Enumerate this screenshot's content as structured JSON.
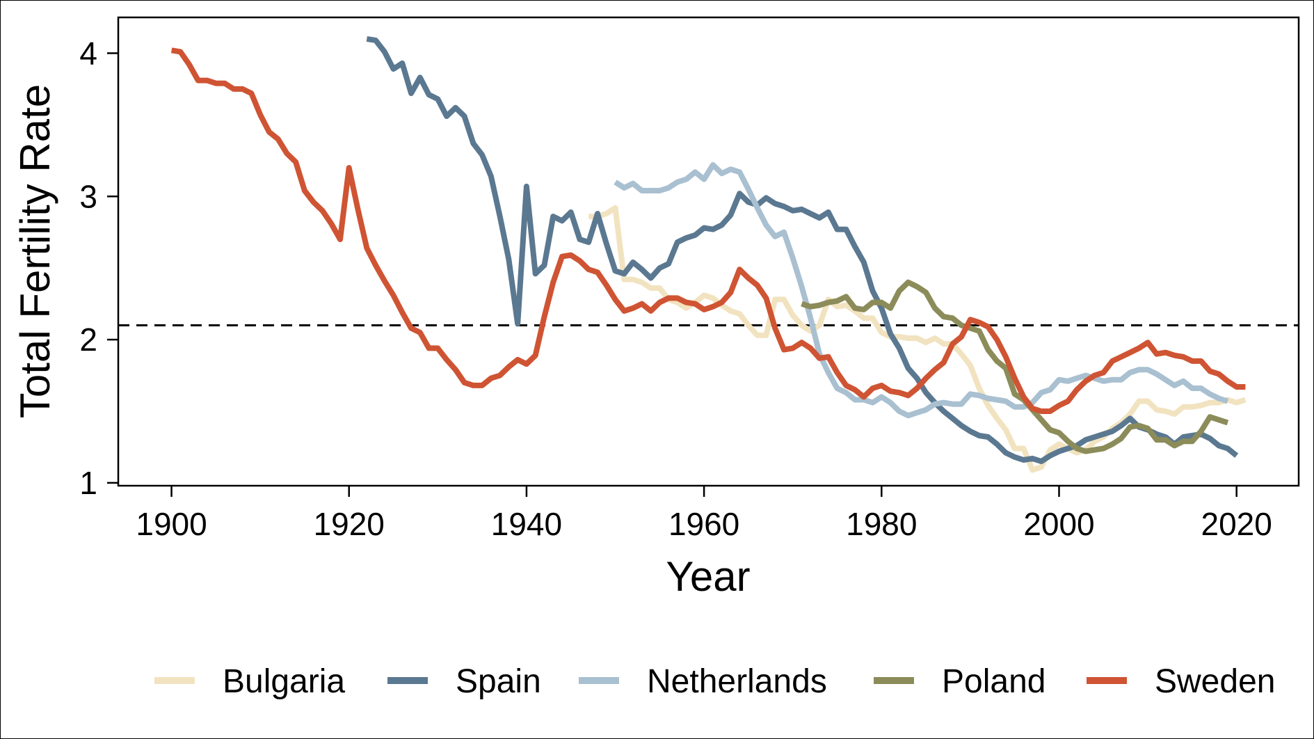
{
  "chart_data": {
    "type": "line",
    "xlabel": "Year",
    "ylabel": "Total Fertility Rate",
    "xlim": [
      1894,
      2027
    ],
    "ylim": [
      0.98,
      4.25
    ],
    "xticks": [
      "1900",
      "1920",
      "1940",
      "1960",
      "1980",
      "2000",
      "2020"
    ],
    "yticks": [
      "1",
      "2",
      "3",
      "4"
    ],
    "reference_line": {
      "y": 2.1,
      "style": "dashed"
    },
    "legend_position": "bottom",
    "series": [
      {
        "name": "Bulgaria",
        "color": "#f2e3c0",
        "x": [
          1947,
          1948,
          1949,
          1950,
          1951,
          1952,
          1953,
          1954,
          1955,
          1956,
          1957,
          1958,
          1959,
          1960,
          1961,
          1962,
          1963,
          1964,
          1965,
          1966,
          1967,
          1968,
          1969,
          1970,
          1971,
          1972,
          1973,
          1974,
          1975,
          1976,
          1977,
          1978,
          1979,
          1980,
          1981,
          1982,
          1983,
          1984,
          1985,
          1986,
          1987,
          1988,
          1989,
          1990,
          1991,
          1992,
          1993,
          1994,
          1995,
          1996,
          1997,
          1998,
          1999,
          2000,
          2001,
          2002,
          2003,
          2004,
          2005,
          2006,
          2007,
          2008,
          2009,
          2010,
          2011,
          2012,
          2013,
          2014,
          2015,
          2016,
          2017,
          2018,
          2019,
          2020,
          2021
        ],
        "y": [
          2.86,
          2.86,
          2.88,
          2.92,
          2.42,
          2.42,
          2.4,
          2.36,
          2.36,
          2.28,
          2.26,
          2.22,
          2.26,
          2.31,
          2.29,
          2.24,
          2.2,
          2.18,
          2.1,
          2.03,
          2.03,
          2.28,
          2.28,
          2.17,
          2.1,
          2.06,
          2.1,
          2.28,
          2.23,
          2.24,
          2.2,
          2.15,
          2.15,
          2.05,
          2.02,
          2.02,
          2.01,
          2.01,
          1.98,
          2.01,
          1.97,
          1.97,
          1.9,
          1.82,
          1.66,
          1.54,
          1.45,
          1.37,
          1.24,
          1.24,
          1.09,
          1.11,
          1.23,
          1.27,
          1.24,
          1.21,
          1.23,
          1.29,
          1.32,
          1.38,
          1.42,
          1.48,
          1.57,
          1.57,
          1.51,
          1.5,
          1.48,
          1.53,
          1.53,
          1.54,
          1.56,
          1.56,
          1.58,
          1.56,
          1.58
        ]
      },
      {
        "name": "Spain",
        "color": "#5b7891",
        "x": [
          1922,
          1923,
          1924,
          1925,
          1926,
          1927,
          1928,
          1929,
          1930,
          1931,
          1932,
          1933,
          1934,
          1935,
          1936,
          1937,
          1938,
          1939,
          1940,
          1941,
          1942,
          1943,
          1944,
          1945,
          1946,
          1947,
          1948,
          1949,
          1950,
          1951,
          1952,
          1953,
          1954,
          1955,
          1956,
          1957,
          1958,
          1959,
          1960,
          1961,
          1962,
          1963,
          1964,
          1965,
          1966,
          1967,
          1968,
          1969,
          1970,
          1971,
          1972,
          1973,
          1974,
          1975,
          1976,
          1977,
          1978,
          1979,
          1980,
          1981,
          1982,
          1983,
          1984,
          1985,
          1986,
          1987,
          1988,
          1989,
          1990,
          1991,
          1992,
          1993,
          1994,
          1995,
          1996,
          1997,
          1998,
          1999,
          2000,
          2001,
          2002,
          2003,
          2004,
          2005,
          2006,
          2007,
          2008,
          2009,
          2010,
          2011,
          2012,
          2013,
          2014,
          2015,
          2016,
          2017,
          2018,
          2019,
          2020
        ],
        "y": [
          4.1,
          4.09,
          4.01,
          3.89,
          3.93,
          3.72,
          3.83,
          3.71,
          3.68,
          3.56,
          3.62,
          3.56,
          3.37,
          3.29,
          3.14,
          2.86,
          2.56,
          2.11,
          3.07,
          2.46,
          2.52,
          2.86,
          2.83,
          2.89,
          2.7,
          2.68,
          2.88,
          2.67,
          2.48,
          2.46,
          2.54,
          2.49,
          2.43,
          2.5,
          2.53,
          2.68,
          2.71,
          2.73,
          2.78,
          2.77,
          2.8,
          2.87,
          3.02,
          2.96,
          2.94,
          2.99,
          2.95,
          2.93,
          2.9,
          2.91,
          2.88,
          2.85,
          2.89,
          2.77,
          2.77,
          2.65,
          2.54,
          2.34,
          2.22,
          2.04,
          1.94,
          1.8,
          1.73,
          1.63,
          1.56,
          1.5,
          1.45,
          1.4,
          1.36,
          1.33,
          1.32,
          1.27,
          1.21,
          1.18,
          1.16,
          1.17,
          1.15,
          1.19,
          1.22,
          1.24,
          1.26,
          1.3,
          1.32,
          1.34,
          1.36,
          1.4,
          1.45,
          1.39,
          1.37,
          1.34,
          1.32,
          1.27,
          1.32,
          1.33,
          1.34,
          1.31,
          1.26,
          1.24,
          1.19
        ]
      },
      {
        "name": "Netherlands",
        "color": "#a9c0d1",
        "x": [
          1950,
          1951,
          1952,
          1953,
          1954,
          1955,
          1956,
          1957,
          1958,
          1959,
          1960,
          1961,
          1962,
          1963,
          1964,
          1965,
          1966,
          1967,
          1968,
          1969,
          1970,
          1971,
          1972,
          1973,
          1974,
          1975,
          1976,
          1977,
          1978,
          1979,
          1980,
          1981,
          1982,
          1983,
          1984,
          1985,
          1986,
          1987,
          1988,
          1989,
          1990,
          1991,
          1992,
          1993,
          1994,
          1995,
          1996,
          1997,
          1998,
          1999,
          2000,
          2001,
          2002,
          2003,
          2004,
          2005,
          2006,
          2007,
          2008,
          2009,
          2010,
          2011,
          2012,
          2013,
          2014,
          2015,
          2016,
          2017,
          2018,
          2019
        ],
        "y": [
          3.1,
          3.06,
          3.09,
          3.04,
          3.04,
          3.04,
          3.06,
          3.1,
          3.12,
          3.17,
          3.12,
          3.22,
          3.16,
          3.19,
          3.17,
          3.05,
          2.92,
          2.8,
          2.72,
          2.75,
          2.57,
          2.37,
          2.15,
          1.9,
          1.77,
          1.66,
          1.63,
          1.58,
          1.58,
          1.56,
          1.6,
          1.56,
          1.5,
          1.47,
          1.49,
          1.51,
          1.55,
          1.56,
          1.55,
          1.55,
          1.62,
          1.61,
          1.59,
          1.58,
          1.57,
          1.53,
          1.53,
          1.56,
          1.63,
          1.65,
          1.72,
          1.71,
          1.73,
          1.75,
          1.73,
          1.71,
          1.72,
          1.72,
          1.77,
          1.79,
          1.79,
          1.76,
          1.72,
          1.68,
          1.71,
          1.66,
          1.66,
          1.62,
          1.59,
          1.57
        ]
      },
      {
        "name": "Poland",
        "color": "#8c8c5a",
        "x": [
          1971,
          1972,
          1973,
          1974,
          1975,
          1976,
          1977,
          1978,
          1979,
          1980,
          1981,
          1982,
          1983,
          1984,
          1985,
          1986,
          1987,
          1988,
          1989,
          1990,
          1991,
          1992,
          1993,
          1994,
          1995,
          1996,
          1997,
          1998,
          1999,
          2000,
          2001,
          2002,
          2003,
          2004,
          2005,
          2006,
          2007,
          2008,
          2009,
          2010,
          2011,
          2012,
          2013,
          2014,
          2015,
          2016,
          2017,
          2018,
          2019
        ],
        "y": [
          2.25,
          2.23,
          2.24,
          2.26,
          2.27,
          2.3,
          2.22,
          2.21,
          2.26,
          2.26,
          2.22,
          2.34,
          2.4,
          2.37,
          2.33,
          2.22,
          2.16,
          2.15,
          2.1,
          2.08,
          2.06,
          1.93,
          1.85,
          1.8,
          1.62,
          1.58,
          1.51,
          1.44,
          1.37,
          1.35,
          1.29,
          1.24,
          1.22,
          1.23,
          1.24,
          1.27,
          1.31,
          1.39,
          1.4,
          1.38,
          1.3,
          1.3,
          1.26,
          1.29,
          1.29,
          1.36,
          1.46,
          1.44,
          1.42
        ]
      },
      {
        "name": "Sweden",
        "color": "#cf5433",
        "x": [
          1900,
          1901,
          1902,
          1903,
          1904,
          1905,
          1906,
          1907,
          1908,
          1909,
          1910,
          1911,
          1912,
          1913,
          1914,
          1915,
          1916,
          1917,
          1918,
          1919,
          1920,
          1921,
          1922,
          1923,
          1924,
          1925,
          1926,
          1927,
          1928,
          1929,
          1930,
          1931,
          1932,
          1933,
          1934,
          1935,
          1936,
          1937,
          1938,
          1939,
          1940,
          1941,
          1942,
          1943,
          1944,
          1945,
          1946,
          1947,
          1948,
          1949,
          1950,
          1951,
          1952,
          1953,
          1954,
          1955,
          1956,
          1957,
          1958,
          1959,
          1960,
          1961,
          1962,
          1963,
          1964,
          1965,
          1966,
          1967,
          1968,
          1969,
          1970,
          1971,
          1972,
          1973,
          1974,
          1975,
          1976,
          1977,
          1978,
          1979,
          1980,
          1981,
          1982,
          1983,
          1984,
          1985,
          1986,
          1987,
          1988,
          1989,
          1990,
          1991,
          1992,
          1993,
          1994,
          1995,
          1996,
          1997,
          1998,
          1999,
          2000,
          2001,
          2002,
          2003,
          2004,
          2005,
          2006,
          2007,
          2008,
          2009,
          2010,
          2011,
          2012,
          2013,
          2014,
          2015,
          2016,
          2017,
          2018,
          2019,
          2020,
          2021
        ],
        "y": [
          4.02,
          4.01,
          3.92,
          3.81,
          3.81,
          3.79,
          3.79,
          3.75,
          3.75,
          3.72,
          3.57,
          3.45,
          3.4,
          3.3,
          3.24,
          3.04,
          2.96,
          2.9,
          2.81,
          2.7,
          3.2,
          2.91,
          2.64,
          2.52,
          2.41,
          2.31,
          2.19,
          2.08,
          2.05,
          1.94,
          1.94,
          1.86,
          1.79,
          1.7,
          1.68,
          1.68,
          1.73,
          1.75,
          1.81,
          1.86,
          1.83,
          1.89,
          2.16,
          2.4,
          2.58,
          2.59,
          2.55,
          2.49,
          2.47,
          2.38,
          2.28,
          2.2,
          2.22,
          2.25,
          2.2,
          2.26,
          2.29,
          2.29,
          2.26,
          2.25,
          2.21,
          2.23,
          2.26,
          2.33,
          2.49,
          2.43,
          2.38,
          2.29,
          2.08,
          1.93,
          1.94,
          1.98,
          1.94,
          1.87,
          1.88,
          1.77,
          1.68,
          1.65,
          1.6,
          1.66,
          1.68,
          1.64,
          1.63,
          1.61,
          1.66,
          1.73,
          1.79,
          1.84,
          1.97,
          2.02,
          2.14,
          2.12,
          2.09,
          2.0,
          1.88,
          1.73,
          1.6,
          1.52,
          1.5,
          1.5,
          1.54,
          1.57,
          1.65,
          1.71,
          1.75,
          1.77,
          1.85,
          1.88,
          1.91,
          1.94,
          1.98,
          1.9,
          1.91,
          1.89,
          1.88,
          1.85,
          1.85,
          1.78,
          1.76,
          1.71,
          1.67,
          1.67
        ]
      }
    ]
  }
}
